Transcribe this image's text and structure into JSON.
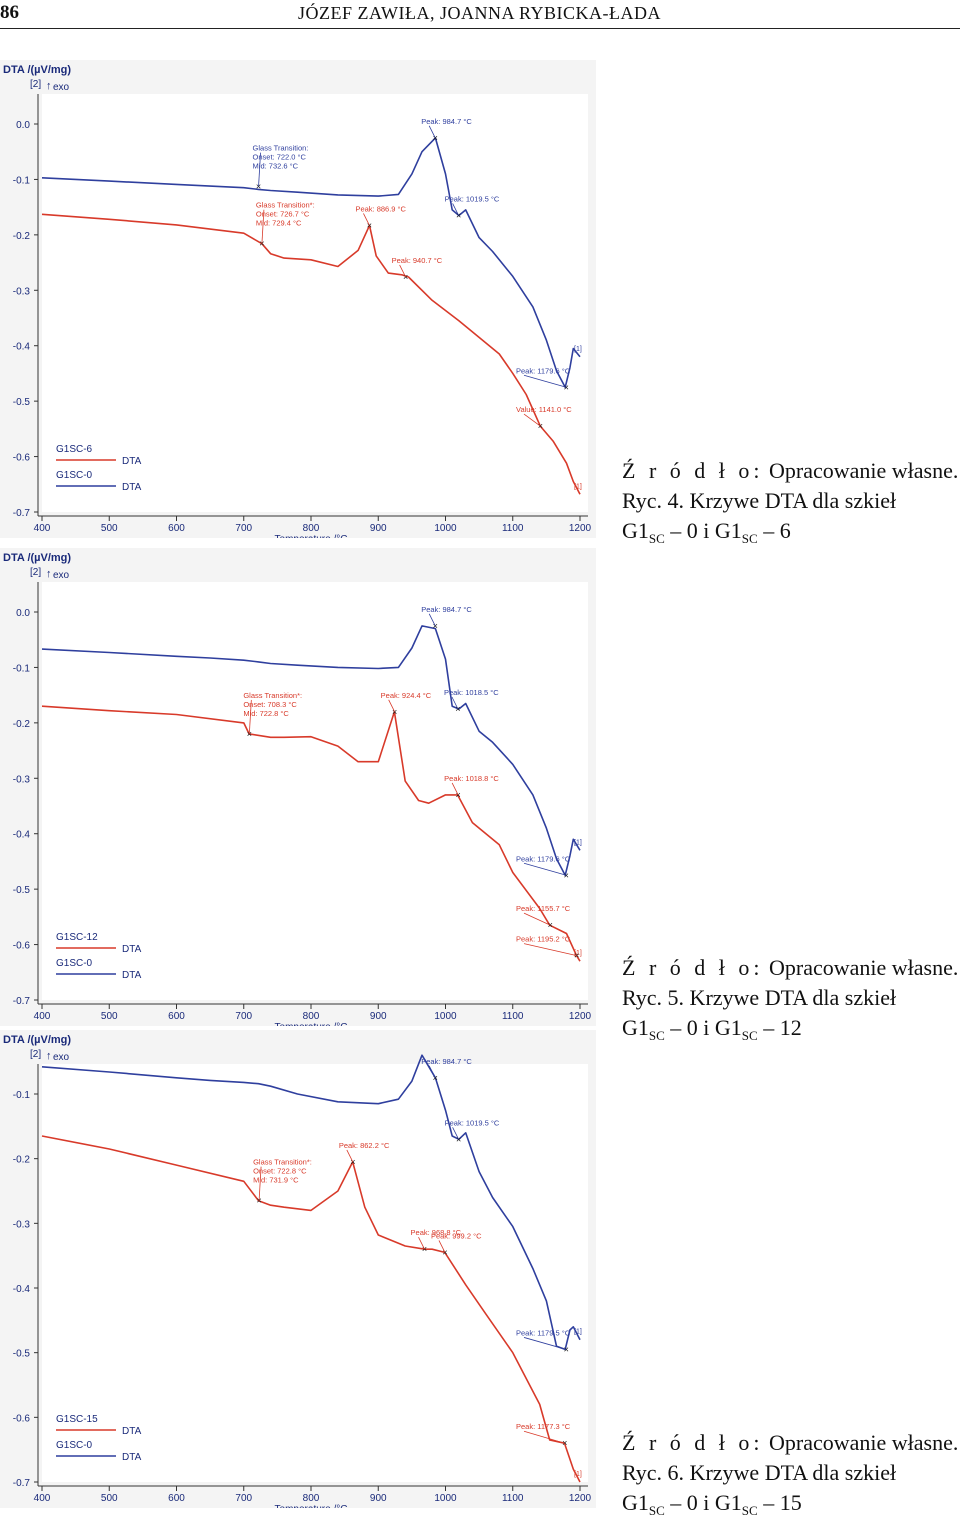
{
  "header": {
    "page_number": "86",
    "running_head": "JÓZEF ZAWIŁA, JOANNA RYBICKA-ŁADA"
  },
  "figures": [
    {
      "caption": {
        "source_label": "Ź r ó d ł o:",
        "source_text": "Opracowanie własne.",
        "title_line1": "Ryc. 4. Krzywe DTA dla szkieł",
        "g1": "G1",
        "sub1": "SC",
        "mid": "– 0 i G1",
        "sub2": "SC",
        "tail": "– 6"
      }
    },
    {
      "caption": {
        "source_label": "Ź r ó d ł o:",
        "source_text": "Opracowanie własne.",
        "title_line1": "Ryc. 5. Krzywe DTA dla szkieł",
        "g1": "G1",
        "sub1": "SC",
        "mid": "– 0 i G1",
        "sub2": "SC",
        "tail": "– 12"
      }
    },
    {
      "caption": {
        "source_label": "Ź r ó d ł o:",
        "source_text": "Opracowanie własne.",
        "title_line1": "Ryc. 6. Krzywe DTA dla szkieł",
        "g1": "G1",
        "sub1": "SC",
        "mid": "– 0 i G1",
        "sub2": "SC",
        "tail": "– 15"
      }
    }
  ],
  "chart_data": [
    {
      "type": "line",
      "ylabel": "DTA /(µV/mg)",
      "y_tag": "[2]",
      "exo_label": "exo",
      "xlabel": "Temperature /°C",
      "xlim": [
        400,
        1200
      ],
      "ylim": [
        -0.7,
        0.0
      ],
      "x_ticks": [
        400,
        500,
        600,
        700,
        800,
        900,
        1000,
        1100,
        1200
      ],
      "y_ticks": [
        0.0,
        -0.1,
        -0.2,
        -0.3,
        -0.4,
        -0.5,
        -0.6,
        -0.7
      ],
      "y_tick_labels": [
        "0.0",
        "-0.1",
        "-0.2",
        "-0.3",
        "-0.4",
        "-0.5",
        "-0.6",
        "-0.7"
      ],
      "legend": [
        {
          "name": "G1SC-6",
          "label": "DTA",
          "color": "#d83a2a"
        },
        {
          "name": "G1SC-0",
          "label": "DTA",
          "color": "#2f3f9e"
        }
      ],
      "series": [
        {
          "name": "G1SC-0",
          "color": "#2f3f9e",
          "x": [
            400,
            500,
            600,
            650,
            700,
            722,
            740,
            780,
            840,
            900,
            930,
            950,
            965,
            985,
            1000,
            1010,
            1020,
            1030,
            1050,
            1070,
            1100,
            1130,
            1150,
            1165,
            1178,
            1185,
            1190,
            1200
          ],
          "y": [
            -0.097,
            -0.103,
            -0.109,
            -0.112,
            -0.115,
            -0.118,
            -0.12,
            -0.123,
            -0.128,
            -0.13,
            -0.127,
            -0.09,
            -0.05,
            -0.025,
            -0.09,
            -0.155,
            -0.165,
            -0.155,
            -0.205,
            -0.23,
            -0.275,
            -0.33,
            -0.39,
            -0.445,
            -0.475,
            -0.44,
            -0.405,
            -0.42
          ]
        },
        {
          "name": "G1SC-6",
          "color": "#d83a2a",
          "x": [
            400,
            500,
            600,
            700,
            727,
            740,
            760,
            800,
            840,
            870,
            887,
            897,
            915,
            935,
            945,
            980,
            1020,
            1080,
            1100,
            1120,
            1141,
            1160,
            1180,
            1190,
            1200
          ],
          "y": [
            -0.163,
            -0.172,
            -0.182,
            -0.197,
            -0.216,
            -0.234,
            -0.242,
            -0.245,
            -0.257,
            -0.228,
            -0.183,
            -0.238,
            -0.269,
            -0.272,
            -0.276,
            -0.318,
            -0.355,
            -0.415,
            -0.45,
            -0.488,
            -0.545,
            -0.572,
            -0.612,
            -0.645,
            -0.668
          ]
        }
      ],
      "annotations": [
        {
          "text": "Glass Transition:",
          "x": 722,
          "y": -0.113,
          "color": "#2f3f9e",
          "lines": [
            "Onset: 722.0 °C",
            "Mid: 732.6 °C"
          ]
        },
        {
          "text": "Peak: 984.7 °C",
          "x": 984.7,
          "y": -0.025,
          "color": "#2f3f9e"
        },
        {
          "text": "Peak: 1019.5 °C",
          "x": 1019.5,
          "y": -0.165,
          "color": "#2f3f9e"
        },
        {
          "text": "Peak: 1179.6 °C",
          "x": 1179.6,
          "y": -0.475,
          "color": "#2f3f9e"
        },
        {
          "text": "Glass Transition*:",
          "x": 727,
          "y": -0.216,
          "color": "#d83a2a",
          "lines": [
            "Onset: 726.7 °C",
            "Mid: 729.4 °C"
          ]
        },
        {
          "text": "Peak: 886.9 °C",
          "x": 886.9,
          "y": -0.183,
          "color": "#d83a2a"
        },
        {
          "text": "Peak: 940.7 °C",
          "x": 940.7,
          "y": -0.276,
          "color": "#d83a2a"
        },
        {
          "text": "Value: 1141.0 °C",
          "x": 1141.0,
          "y": -0.545,
          "color": "#d83a2a"
        }
      ],
      "end_marks": [
        "[1]",
        "[1]"
      ]
    },
    {
      "type": "line",
      "ylabel": "DTA /(µV/mg)",
      "y_tag": "[2]",
      "exo_label": "exo",
      "xlabel": "Temperature /°C",
      "xlim": [
        400,
        1200
      ],
      "ylim": [
        -0.7,
        0.0
      ],
      "x_ticks": [
        400,
        500,
        600,
        700,
        800,
        900,
        1000,
        1100,
        1200
      ],
      "y_ticks": [
        0.0,
        -0.1,
        -0.2,
        -0.3,
        -0.4,
        -0.5,
        -0.6,
        -0.7
      ],
      "y_tick_labels": [
        "0.0",
        "-0.1",
        "-0.2",
        "-0.3",
        "-0.4",
        "-0.5",
        "-0.6",
        "-0.7"
      ],
      "legend": [
        {
          "name": "G1SC-12",
          "label": "DTA",
          "color": "#d83a2a"
        },
        {
          "name": "G1SC-0",
          "label": "DTA",
          "color": "#2f3f9e"
        }
      ],
      "series": [
        {
          "name": "G1SC-0",
          "color": "#2f3f9e",
          "x": [
            400,
            500,
            600,
            650,
            700,
            722,
            740,
            780,
            840,
            900,
            930,
            950,
            965,
            985,
            1000,
            1010,
            1020,
            1030,
            1050,
            1070,
            1100,
            1130,
            1150,
            1165,
            1178,
            1185,
            1190,
            1200
          ],
          "y": [
            -0.067,
            -0.073,
            -0.08,
            -0.083,
            -0.087,
            -0.09,
            -0.093,
            -0.096,
            -0.1,
            -0.102,
            -0.1,
            -0.065,
            -0.025,
            -0.03,
            -0.085,
            -0.17,
            -0.175,
            -0.165,
            -0.215,
            -0.235,
            -0.275,
            -0.33,
            -0.39,
            -0.445,
            -0.475,
            -0.44,
            -0.41,
            -0.43
          ]
        },
        {
          "name": "G1SC-12",
          "color": "#d83a2a",
          "x": [
            400,
            500,
            600,
            700,
            708,
            740,
            760,
            800,
            840,
            870,
            900,
            924,
            940,
            960,
            975,
            1000,
            1018,
            1040,
            1080,
            1100,
            1140,
            1155,
            1180,
            1195,
            1200
          ],
          "y": [
            -0.17,
            -0.178,
            -0.185,
            -0.2,
            -0.22,
            -0.226,
            -0.226,
            -0.225,
            -0.242,
            -0.27,
            -0.27,
            -0.18,
            -0.305,
            -0.34,
            -0.345,
            -0.33,
            -0.33,
            -0.38,
            -0.42,
            -0.47,
            -0.535,
            -0.565,
            -0.58,
            -0.62,
            -0.63
          ]
        }
      ],
      "annotations": [
        {
          "text": "Peak: 984.7 °C",
          "x": 984.7,
          "y": -0.025,
          "color": "#2f3f9e"
        },
        {
          "text": "Peak: 1018.5 °C",
          "x": 1018.5,
          "y": -0.175,
          "color": "#2f3f9e"
        },
        {
          "text": "Peak: 1179.6 °C",
          "x": 1179.6,
          "y": -0.475,
          "color": "#2f3f9e"
        },
        {
          "text": "Glass Transition*:",
          "x": 708.3,
          "y": -0.22,
          "color": "#d83a2a",
          "lines": [
            "Onset: 708.3 °C",
            "Mid: 722.8 °C"
          ]
        },
        {
          "text": "Peak: 924.4 °C",
          "x": 924.4,
          "y": -0.18,
          "color": "#d83a2a"
        },
        {
          "text": "Peak: 1018.8 °C",
          "x": 1018.8,
          "y": -0.33,
          "color": "#d83a2a"
        },
        {
          "text": "Peak: 1155.7 °C",
          "x": 1155.7,
          "y": -0.565,
          "color": "#d83a2a"
        },
        {
          "text": "Peak: 1195.2 °C",
          "x": 1195.2,
          "y": -0.62,
          "color": "#d83a2a"
        }
      ],
      "end_marks": [
        "[1]",
        "[1]"
      ]
    },
    {
      "type": "line",
      "ylabel": "DTA /(µV/mg)",
      "y_tag": "[2]",
      "exo_label": "exo",
      "xlabel": "Temperature /°C",
      "xlim": [
        400,
        1200
      ],
      "ylim": [
        -0.7,
        -0.1
      ],
      "x_ticks": [
        400,
        500,
        600,
        700,
        800,
        900,
        1000,
        1100,
        1200
      ],
      "y_ticks": [
        -0.1,
        -0.2,
        -0.3,
        -0.4,
        -0.5,
        -0.6,
        -0.7
      ],
      "y_tick_labels": [
        "-0.1",
        "-0.2",
        "-0.3",
        "-0.4",
        "-0.5",
        "-0.6",
        "-0.7"
      ],
      "legend": [
        {
          "name": "G1SC-15",
          "label": "DTA",
          "color": "#d83a2a"
        },
        {
          "name": "G1SC-0",
          "label": "DTA",
          "color": "#2f3f9e"
        }
      ],
      "series": [
        {
          "name": "G1SC-0",
          "color": "#2f3f9e",
          "x": [
            400,
            500,
            600,
            650,
            700,
            722,
            740,
            780,
            840,
            900,
            930,
            950,
            965,
            985,
            1000,
            1010,
            1020,
            1030,
            1050,
            1070,
            1100,
            1130,
            1150,
            1165,
            1178,
            1185,
            1190,
            1200
          ],
          "y": [
            -0.058,
            -0.066,
            -0.075,
            -0.079,
            -0.082,
            -0.084,
            -0.088,
            -0.1,
            -0.112,
            -0.115,
            -0.108,
            -0.08,
            -0.04,
            -0.075,
            -0.125,
            -0.165,
            -0.17,
            -0.16,
            -0.22,
            -0.26,
            -0.305,
            -0.37,
            -0.42,
            -0.49,
            -0.495,
            -0.465,
            -0.46,
            -0.48
          ]
        },
        {
          "name": "G1SC-15",
          "color": "#d83a2a",
          "x": [
            400,
            500,
            600,
            700,
            722,
            740,
            760,
            800,
            840,
            862,
            880,
            900,
            940,
            969,
            980,
            999,
            1030,
            1060,
            1100,
            1140,
            1155,
            1177,
            1190,
            1200
          ],
          "y": [
            -0.165,
            -0.185,
            -0.21,
            -0.235,
            -0.265,
            -0.272,
            -0.275,
            -0.28,
            -0.25,
            -0.205,
            -0.275,
            -0.318,
            -0.335,
            -0.34,
            -0.34,
            -0.345,
            -0.395,
            -0.44,
            -0.5,
            -0.58,
            -0.635,
            -0.64,
            -0.68,
            -0.7
          ]
        }
      ],
      "annotations": [
        {
          "text": "Peak: 984.7 °C",
          "x": 984.7,
          "y": -0.075,
          "color": "#2f3f9e"
        },
        {
          "text": "Peak: 1019.5 °C",
          "x": 1019.5,
          "y": -0.17,
          "color": "#2f3f9e"
        },
        {
          "text": "Peak: 1179.5 °C",
          "x": 1179.5,
          "y": -0.495,
          "color": "#2f3f9e"
        },
        {
          "text": "Glass Transition*:",
          "x": 722.8,
          "y": -0.265,
          "color": "#d83a2a",
          "lines": [
            "Onset: 722.8 °C",
            "Mid: 731.9 °C"
          ]
        },
        {
          "text": "Peak: 862.2 °C",
          "x": 862.2,
          "y": -0.205,
          "color": "#d83a2a"
        },
        {
          "text": "Peak: 968.8 °C",
          "x": 968.8,
          "y": -0.34,
          "color": "#d83a2a"
        },
        {
          "text": "Peak: 999.2 °C",
          "x": 999.2,
          "y": -0.345,
          "color": "#d83a2a"
        },
        {
          "text": "Peak: 1177.3 °C",
          "x": 1177.3,
          "y": -0.64,
          "color": "#d83a2a"
        }
      ],
      "end_marks": [
        "[1]",
        "[1]"
      ]
    }
  ]
}
